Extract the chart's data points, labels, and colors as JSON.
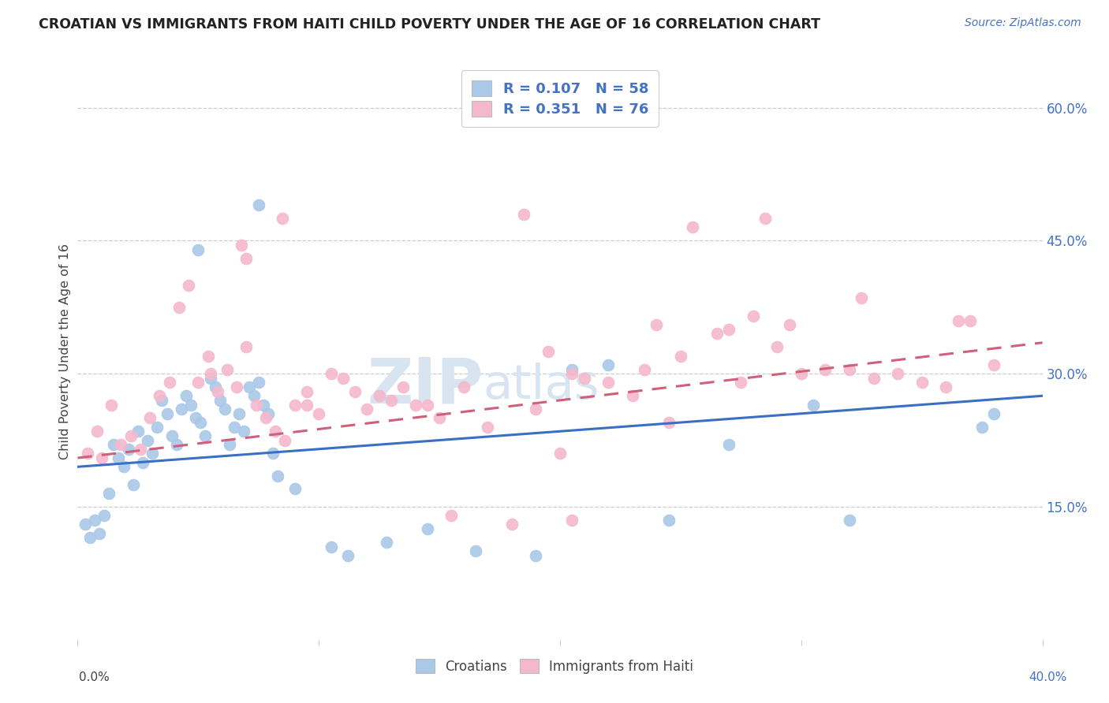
{
  "title": "CROATIAN VS IMMIGRANTS FROM HAITI CHILD POVERTY UNDER THE AGE OF 16 CORRELATION CHART",
  "source": "Source: ZipAtlas.com",
  "ylabel": "Child Poverty Under the Age of 16",
  "legend_label1": "Croatians",
  "legend_label2": "Immigrants from Haiti",
  "color_blue": "#aac8e8",
  "color_pink": "#f4b8cc",
  "line_color_blue": "#3a6fc4",
  "line_color_pink": "#d0607a",
  "watermark_zip": "ZIP",
  "watermark_atlas": "atlas",
  "watermark_color": "#d8e4f0",
  "background": "#ffffff",
  "xmin": 0,
  "xmax": 40,
  "ymin": 0,
  "ymax": 65,
  "ytick_vals": [
    15,
    30,
    45,
    60
  ],
  "ytick_labels": [
    "15.0%",
    "30.0%",
    "45.0%",
    "60.0%"
  ],
  "blue_line_x": [
    0,
    40
  ],
  "blue_line_y": [
    19.5,
    27.5
  ],
  "pink_line_x": [
    0,
    40
  ],
  "pink_line_y": [
    20.5,
    33.5
  ],
  "croatian_x": [
    0.3,
    0.5,
    0.7,
    0.9,
    1.1,
    1.3,
    1.5,
    1.7,
    1.9,
    2.1,
    2.3,
    2.5,
    2.7,
    2.9,
    3.1,
    3.3,
    3.5,
    3.7,
    3.9,
    4.1,
    4.3,
    4.5,
    4.7,
    4.9,
    5.1,
    5.3,
    5.5,
    5.7,
    5.9,
    6.1,
    6.3,
    6.5,
    6.7,
    6.9,
    7.1,
    7.3,
    7.5,
    7.7,
    7.9,
    8.1,
    8.3,
    9.0,
    10.5,
    11.2,
    12.8,
    14.5,
    16.5,
    19.0,
    20.5,
    22.0,
    24.5,
    27.0,
    30.5,
    32.0,
    37.5,
    38.0,
    5.0,
    7.5
  ],
  "croatian_y": [
    13.0,
    11.5,
    13.5,
    12.0,
    14.0,
    16.5,
    22.0,
    20.5,
    19.5,
    21.5,
    17.5,
    23.5,
    20.0,
    22.5,
    21.0,
    24.0,
    27.0,
    25.5,
    23.0,
    22.0,
    26.0,
    27.5,
    26.5,
    25.0,
    24.5,
    23.0,
    29.5,
    28.5,
    27.0,
    26.0,
    22.0,
    24.0,
    25.5,
    23.5,
    28.5,
    27.5,
    29.0,
    26.5,
    25.5,
    21.0,
    18.5,
    17.0,
    10.5,
    9.5,
    11.0,
    12.5,
    10.0,
    9.5,
    30.5,
    31.0,
    13.5,
    22.0,
    26.5,
    13.5,
    24.0,
    25.5,
    44.0,
    49.0
  ],
  "haiti_x": [
    0.4,
    0.8,
    1.0,
    1.4,
    1.8,
    2.2,
    2.6,
    3.0,
    3.4,
    3.8,
    4.2,
    4.6,
    5.0,
    5.4,
    5.8,
    6.2,
    6.6,
    7.0,
    7.4,
    7.8,
    8.2,
    8.6,
    9.0,
    9.5,
    10.0,
    10.5,
    11.0,
    11.5,
    12.0,
    12.5,
    13.0,
    13.5,
    14.0,
    15.0,
    16.0,
    17.0,
    18.0,
    19.0,
    20.0,
    20.5,
    21.0,
    22.0,
    23.0,
    24.0,
    25.0,
    26.5,
    27.0,
    28.0,
    29.0,
    30.0,
    31.0,
    32.0,
    33.0,
    34.0,
    35.0,
    36.0,
    37.0,
    38.0,
    18.5,
    28.5,
    32.5,
    25.5,
    36.5,
    29.5,
    14.5,
    8.5,
    23.5,
    27.5,
    20.5,
    7.0,
    6.8,
    24.5,
    15.5,
    5.5,
    9.5,
    19.5
  ],
  "haiti_y": [
    21.0,
    23.5,
    20.5,
    26.5,
    22.0,
    23.0,
    21.5,
    25.0,
    27.5,
    29.0,
    37.5,
    40.0,
    29.0,
    32.0,
    28.0,
    30.5,
    28.5,
    33.0,
    26.5,
    25.0,
    23.5,
    22.5,
    26.5,
    28.0,
    25.5,
    30.0,
    29.5,
    28.0,
    26.0,
    27.5,
    27.0,
    28.5,
    26.5,
    25.0,
    28.5,
    24.0,
    13.0,
    26.0,
    21.0,
    30.0,
    29.5,
    29.0,
    27.5,
    35.5,
    32.0,
    34.5,
    35.0,
    36.5,
    33.0,
    30.0,
    30.5,
    30.5,
    29.5,
    30.0,
    29.0,
    28.5,
    36.0,
    31.0,
    48.0,
    47.5,
    38.5,
    46.5,
    36.0,
    35.5,
    26.5,
    47.5,
    30.5,
    29.0,
    13.5,
    43.0,
    44.5,
    24.5,
    14.0,
    30.0,
    26.5,
    32.5
  ]
}
